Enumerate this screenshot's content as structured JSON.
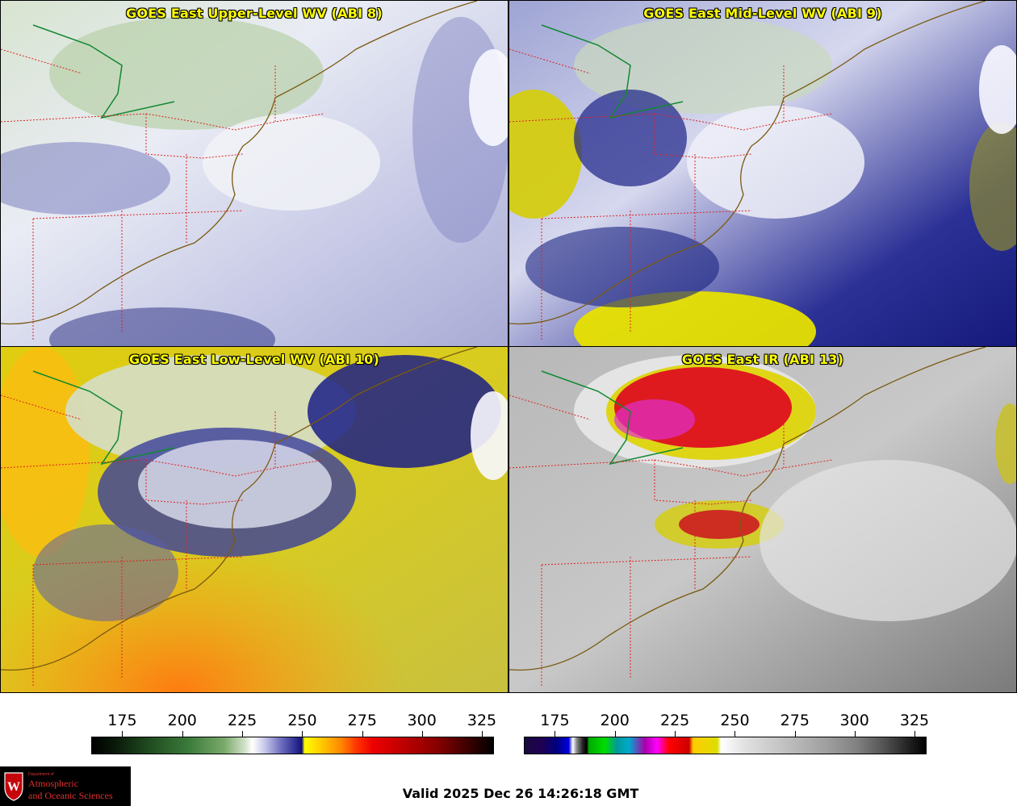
{
  "panels": [
    {
      "title": "GOES East Upper-Level WV (ABI 8)",
      "colormap": "wv"
    },
    {
      "title": "GOES East Mid-Level WV (ABI 9)",
      "colormap": "wv"
    },
    {
      "title": "GOES East Low-Level WV (ABI 10)",
      "colormap": "wv"
    },
    {
      "title": "GOES East IR (ABI 13)",
      "colormap": "ir"
    }
  ],
  "colorbars": [
    {
      "name": "wv",
      "ticks": [
        "175",
        "200",
        "225",
        "250",
        "275",
        "300",
        "325"
      ],
      "min": 162,
      "max": 330
    },
    {
      "name": "ir",
      "ticks": [
        "175",
        "200",
        "225",
        "250",
        "275",
        "300",
        "325"
      ],
      "min": 162,
      "max": 330
    }
  ],
  "valid_time": "Valid 2025 Dec 26 14:26:18 GMT",
  "logo": {
    "dept": "Department of",
    "line1": "Atmospheric",
    "line2": "and Oceanic Sciences"
  },
  "colors": {
    "title_text": "#ffff00",
    "state_borders": "#dd2222",
    "coastline": "#7a5a10",
    "intl_border": "#118833"
  }
}
